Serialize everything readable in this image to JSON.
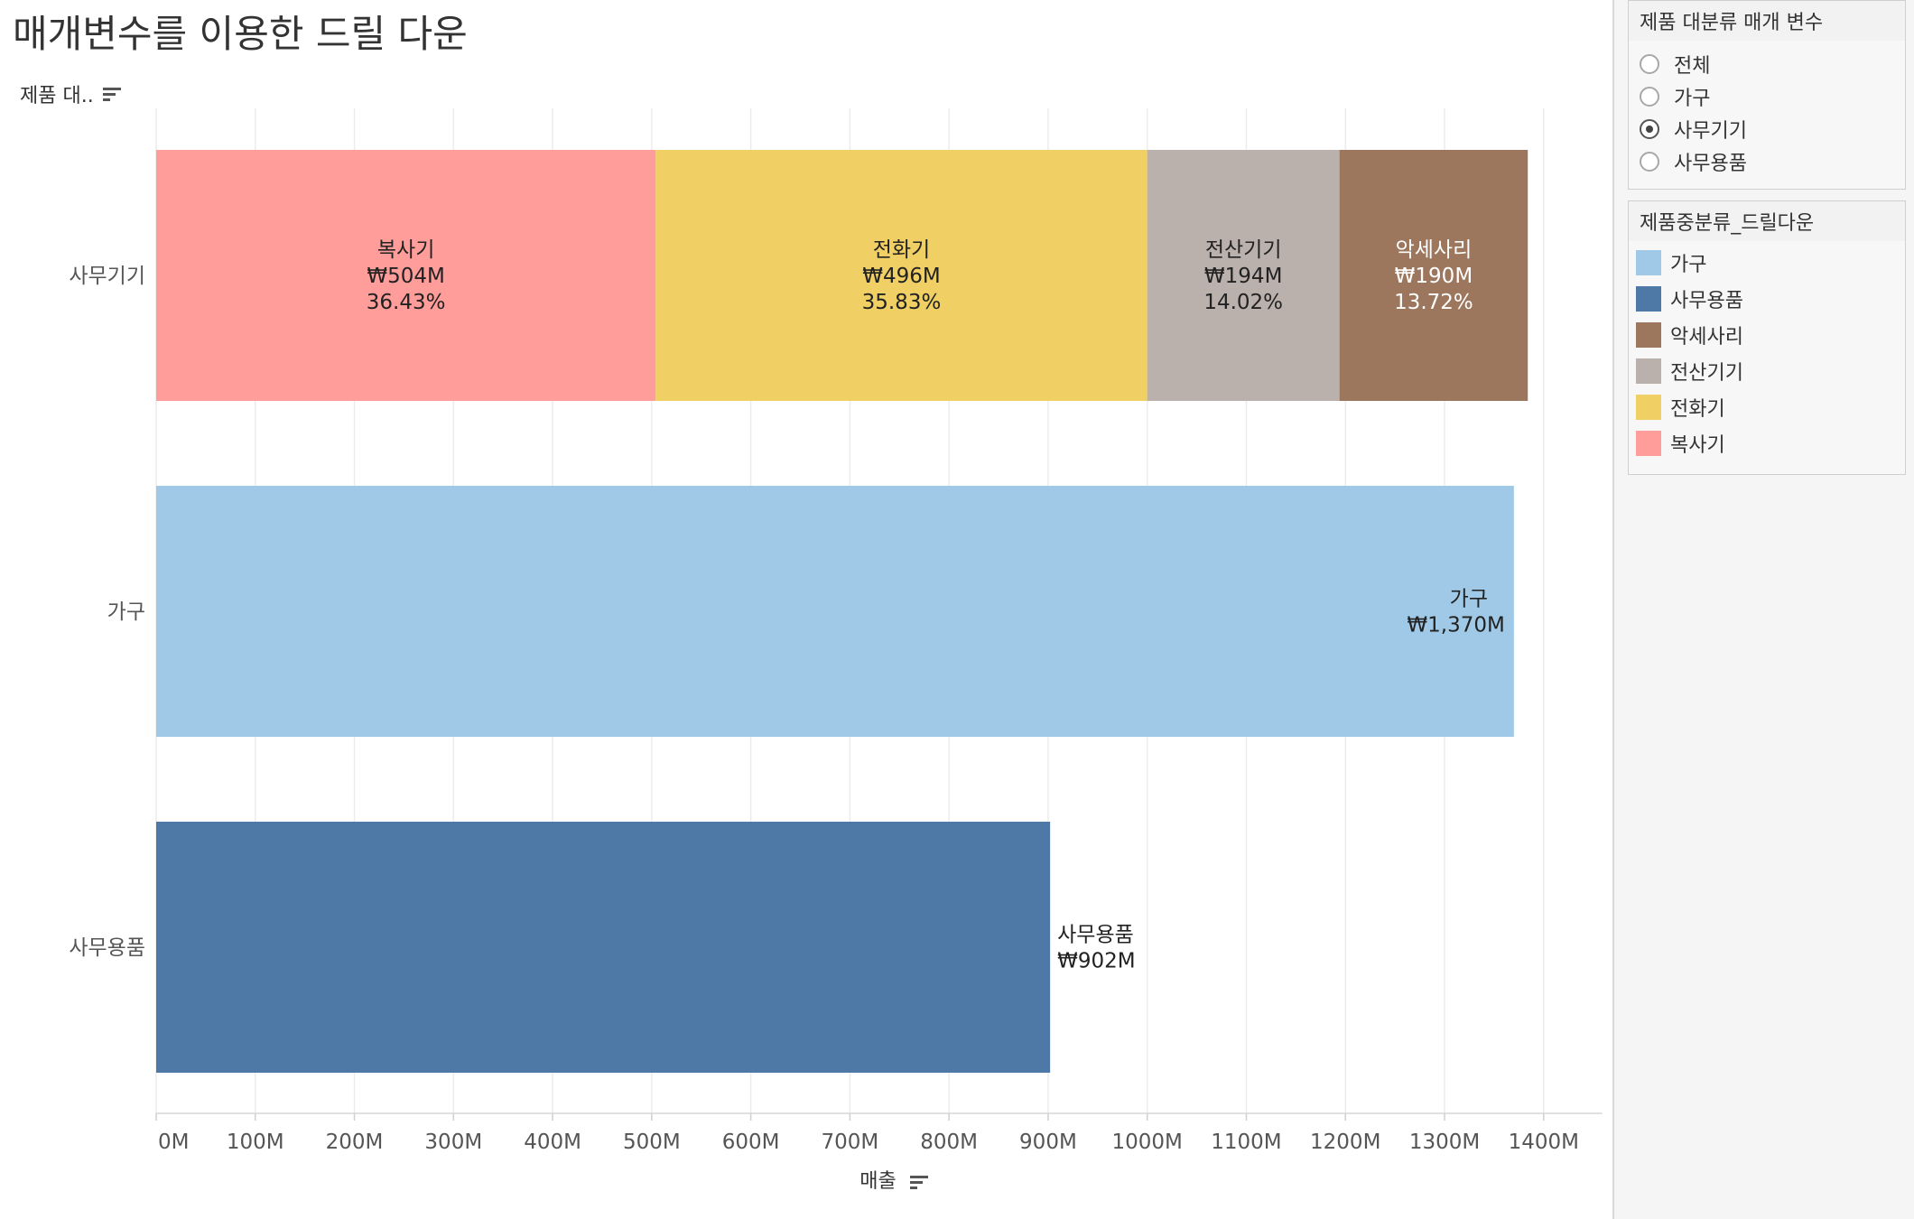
{
  "title": "매개변수를 이용한 드릴 다운",
  "y_header": "제품 대..",
  "x_axis_title": "매출",
  "parameter_panel": {
    "title": "제품 대분류 매개 변수",
    "options": [
      {
        "label": "전체",
        "selected": false
      },
      {
        "label": "가구",
        "selected": false
      },
      {
        "label": "사무기기",
        "selected": true
      },
      {
        "label": "사무용품",
        "selected": false
      }
    ]
  },
  "legend_panel": {
    "title": "제품중분류_드릴다운",
    "items": [
      {
        "label": "가구",
        "color": "#9fc9e6"
      },
      {
        "label": "사무용품",
        "color": "#4e79a7"
      },
      {
        "label": "악세사리",
        "color": "#9c765d"
      },
      {
        "label": "전산기기",
        "color": "#bab0ac"
      },
      {
        "label": "전화기",
        "color": "#f0cf65"
      },
      {
        "label": "복사기",
        "color": "#ff9d9a"
      }
    ]
  },
  "chart_data": {
    "type": "bar",
    "orientation": "horizontal",
    "stacked": true,
    "xlim": [
      0,
      1450
    ],
    "x_ticks": [
      "0M",
      "100M",
      "200M",
      "300M",
      "400M",
      "500M",
      "600M",
      "700M",
      "800M",
      "900M",
      "1000M",
      "1100M",
      "1200M",
      "1300M",
      "1400M"
    ],
    "categories": [
      "사무기기",
      "가구",
      "사무용품"
    ],
    "bars": [
      {
        "category": "사무기기",
        "segments": [
          {
            "name": "복사기",
            "value": 504,
            "label": "₩504M",
            "pct": "36.43%",
            "color": "#ff9d9a",
            "text_color": "#222222"
          },
          {
            "name": "전화기",
            "value": 496,
            "label": "₩496M",
            "pct": "35.83%",
            "color": "#f0cf65",
            "text_color": "#222222"
          },
          {
            "name": "전산기기",
            "value": 194,
            "label": "₩194M",
            "pct": "14.02%",
            "color": "#bab0ac",
            "text_color": "#222222"
          },
          {
            "name": "악세사리",
            "value": 190,
            "label": "₩190M",
            "pct": "13.72%",
            "color": "#9c765d",
            "text_color": "#ffffff"
          }
        ]
      },
      {
        "category": "가구",
        "segments": [
          {
            "name": "가구",
            "value": 1370,
            "label": "₩1,370M",
            "color": "#9fc9e6",
            "text_color": "#222222",
            "label_inside_end": true
          }
        ]
      },
      {
        "category": "사무용품",
        "segments": [
          {
            "name": "사무용품",
            "value": 902,
            "label": "₩902M",
            "color": "#4e79a7",
            "text_color": "#222222",
            "label_outside": true
          }
        ]
      }
    ]
  }
}
